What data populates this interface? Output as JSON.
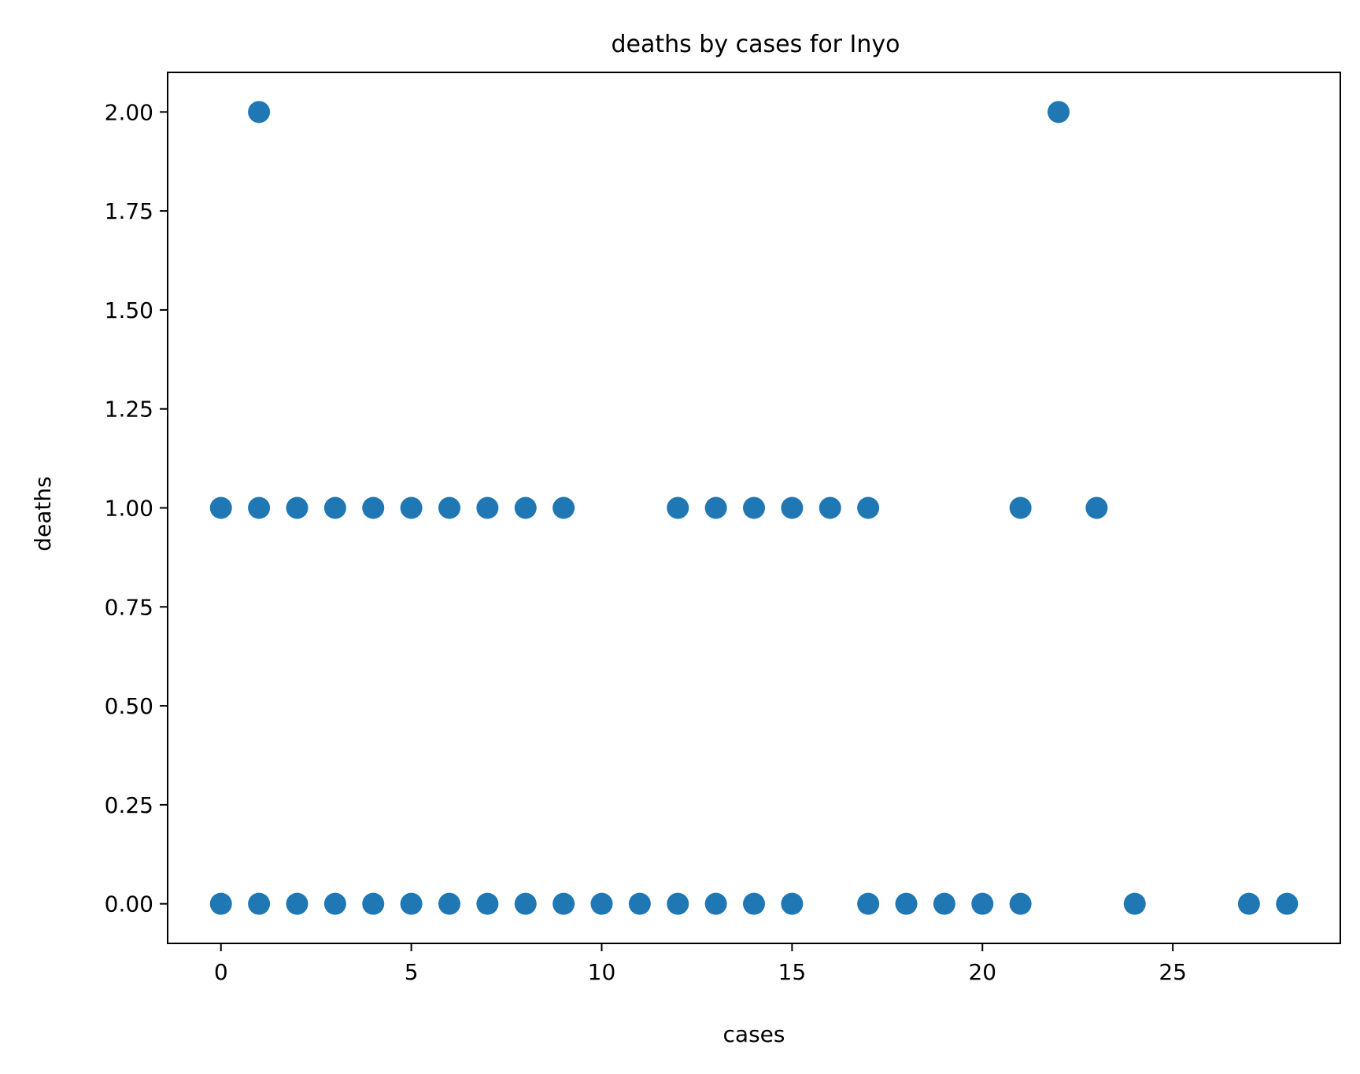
{
  "chart_data": {
    "type": "scatter",
    "title": "deaths by cases for Inyo",
    "xlabel": "cases",
    "ylabel": "deaths",
    "xlim": [
      -1.4,
      29.4
    ],
    "ylim": [
      -0.1,
      2.1
    ],
    "xticks": [
      0,
      5,
      10,
      15,
      20,
      25
    ],
    "xtick_labels": [
      "0",
      "5",
      "10",
      "15",
      "20",
      "25"
    ],
    "yticks": [
      0,
      0.25,
      0.5,
      0.75,
      1.0,
      1.25,
      1.5,
      1.75,
      2.0
    ],
    "ytick_labels": [
      "0.00",
      "0.25",
      "0.50",
      "0.75",
      "1.00",
      "1.25",
      "1.50",
      "1.75",
      "2.00"
    ],
    "grid": false,
    "marker_color": "#1f77b4",
    "series": [
      {
        "points": [
          [
            1,
            2
          ],
          [
            22,
            2
          ],
          [
            0,
            1
          ],
          [
            1,
            1
          ],
          [
            2,
            1
          ],
          [
            3,
            1
          ],
          [
            4,
            1
          ],
          [
            5,
            1
          ],
          [
            6,
            1
          ],
          [
            7,
            1
          ],
          [
            8,
            1
          ],
          [
            9,
            1
          ],
          [
            12,
            1
          ],
          [
            13,
            1
          ],
          [
            14,
            1
          ],
          [
            15,
            1
          ],
          [
            16,
            1
          ],
          [
            17,
            1
          ],
          [
            21,
            1
          ],
          [
            23,
            1
          ],
          [
            0,
            0
          ],
          [
            1,
            0
          ],
          [
            2,
            0
          ],
          [
            3,
            0
          ],
          [
            4,
            0
          ],
          [
            5,
            0
          ],
          [
            6,
            0
          ],
          [
            7,
            0
          ],
          [
            8,
            0
          ],
          [
            9,
            0
          ],
          [
            10,
            0
          ],
          [
            11,
            0
          ],
          [
            12,
            0
          ],
          [
            13,
            0
          ],
          [
            14,
            0
          ],
          [
            15,
            0
          ],
          [
            17,
            0
          ],
          [
            18,
            0
          ],
          [
            19,
            0
          ],
          [
            20,
            0
          ],
          [
            21,
            0
          ],
          [
            24,
            0
          ],
          [
            27,
            0
          ],
          [
            28,
            0
          ]
        ]
      }
    ]
  }
}
